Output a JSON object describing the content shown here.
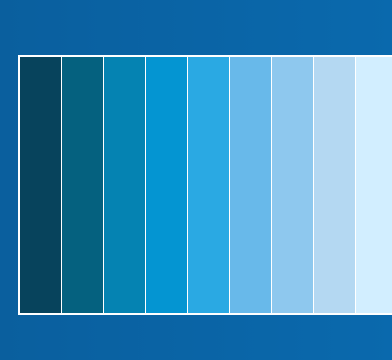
{
  "background": {
    "gradient_from": "#0a5f9e",
    "gradient_to": "#0a69ad"
  },
  "palette": {
    "frame_color": "#ffffff",
    "swatches": [
      {
        "color": "#07435c"
      },
      {
        "color": "#05617f"
      },
      {
        "color": "#0583b2"
      },
      {
        "color": "#0495d2"
      },
      {
        "color": "#2aa9e3"
      },
      {
        "color": "#68b9ea"
      },
      {
        "color": "#8ec8ee"
      },
      {
        "color": "#b4d8f2"
      },
      {
        "color": "#d2eeff"
      }
    ]
  }
}
